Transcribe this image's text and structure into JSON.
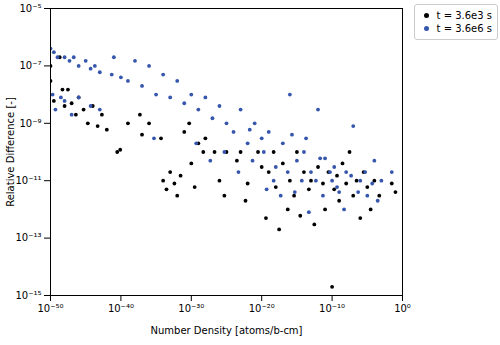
{
  "chart_data": {
    "type": "scatter",
    "xlabel": "Number Density [atoms/b-cm]",
    "ylabel": "Relative Difference [-]",
    "log": true,
    "legend": "upper right",
    "marker": "circle",
    "xlim": [
      1e-50,
      1
    ],
    "ylim": [
      1e-15,
      1e-05
    ],
    "xticks": [
      {
        "value": 1e-50,
        "label": "10⁻⁵⁰"
      },
      {
        "value": 1e-40,
        "label": "10⁻⁴⁰"
      },
      {
        "value": 1e-30,
        "label": "10⁻³⁰"
      },
      {
        "value": 1e-20,
        "label": "10⁻²⁰"
      },
      {
        "value": 1e-10,
        "label": "10⁻¹⁰"
      },
      {
        "value": 1,
        "label": "10⁰"
      }
    ],
    "yticks": [
      {
        "value": 1e-15,
        "label": "10⁻¹⁵"
      },
      {
        "value": 1e-13,
        "label": "10⁻¹³"
      },
      {
        "value": 1e-11,
        "label": "10⁻¹¹"
      },
      {
        "value": 1e-09,
        "label": "10⁻⁹"
      },
      {
        "value": 1e-07,
        "label": "10⁻⁷"
      },
      {
        "value": 1e-05,
        "label": "10⁻⁵"
      }
    ],
    "series": [
      {
        "name": "t = 3.6e3 s",
        "color": "#000000",
        "x": [
          1e-50,
          1e-50,
          3e-50,
          2e-49,
          5e-49,
          1e-48,
          3e-48,
          1e-47,
          4e-47,
          1e-46,
          5e-46,
          2e-45,
          1e-44,
          5e-44,
          2e-43,
          1e-42,
          3e-41,
          8e-41,
          1e-39,
          5e-38,
          1e-37,
          1e-36,
          5e-35,
          1e-34,
          3e-34,
          1e-33,
          4e-33,
          1e-32,
          3e-32,
          1e-31,
          5e-31,
          1e-30,
          3e-30,
          1e-29,
          5e-29,
          1e-28,
          2e-27,
          1e-26,
          5e-26,
          1e-25,
          3e-24,
          1e-23,
          5e-23,
          1e-22,
          3e-21,
          1e-20,
          4e-20,
          1e-19,
          5e-19,
          1e-18,
          3e-18,
          1e-17,
          5e-17,
          1e-16,
          4e-16,
          1e-15,
          3e-15,
          1e-14,
          5e-14,
          1e-13,
          3e-13,
          1e-12,
          5e-12,
          1e-11,
          3e-11,
          1e-10,
          2e-10,
          5e-10,
          1e-09,
          3e-09,
          1e-08,
          3e-08,
          1e-07,
          3e-07,
          1e-06,
          3e-06,
          1e-05,
          3e-05,
          0.0001,
          0.0005,
          0.03,
          0.1
        ],
        "values": [
          3e-08,
          1e-07,
          6e-09,
          2e-07,
          1.5e-08,
          4e-09,
          1.5e-08,
          5e-09,
          2e-09,
          8e-09,
          3e-09,
          1e-09,
          4e-09,
          8e-10,
          2e-09,
          6e-10,
          1e-10,
          1.2e-10,
          1e-09,
          2e-09,
          4e-10,
          1e-09,
          3e-10,
          1e-11,
          5e-12,
          2e-11,
          8e-12,
          3e-12,
          1.5e-11,
          5e-10,
          1e-09,
          4e-11,
          6e-12,
          2e-10,
          1e-10,
          3e-10,
          1e-10,
          1e-11,
          3e-12,
          1e-10,
          5e-11,
          1e-10,
          2e-12,
          8e-12,
          1e-10,
          3e-11,
          5e-13,
          2e-11,
          1e-10,
          6e-12,
          2e-13,
          4e-11,
          1e-12,
          1e-11,
          3e-12,
          1e-10,
          6e-13,
          2e-11,
          5e-12,
          1e-11,
          3e-13,
          3e-11,
          8e-12,
          1e-12,
          2e-11,
          2e-15,
          5e-12,
          1.5e-11,
          2e-12,
          4e-11,
          8e-12,
          1e-10,
          3e-12,
          1e-11,
          5e-13,
          2e-11,
          6e-12,
          1e-12,
          1e-11,
          3e-12,
          8e-12,
          4e-12
        ]
      },
      {
        "name": "t = 3.6e6 s",
        "color": "#3656ad",
        "x": [
          1e-50,
          3e-50,
          1e-49,
          2e-50,
          5e-50,
          3e-49,
          1e-48,
          5e-48,
          2e-47,
          1e-46,
          1e-45,
          5e-45,
          2e-44,
          1e-43,
          1e-48,
          1e-47,
          1e-46,
          5e-45,
          1e-43,
          5e-42,
          1e-41,
          1e-40,
          1e-39,
          1e-38,
          1e-37,
          1e-36,
          1e-35,
          1e-34,
          1e-33,
          1e-32,
          1e-31,
          1e-30,
          1e-29,
          1e-28,
          1e-27,
          1e-26,
          1e-25,
          1e-24,
          1e-23,
          1e-22,
          1e-21,
          1e-20,
          1e-19,
          1e-18,
          1e-17,
          1e-16,
          1e-15,
          1e-14,
          1e-13,
          1e-12,
          1e-11,
          1e-10,
          1e-09,
          1e-08,
          1e-07,
          1e-06,
          1e-05,
          0.0001,
          0.001,
          0.03,
          5e-36,
          5e-30,
          5e-28,
          5e-26,
          5e-24,
          5e-22,
          5e-20,
          5e-19,
          5e-18,
          5e-17,
          5e-16,
          5e-15,
          5e-14,
          5e-13,
          5e-12,
          5e-11,
          5e-10,
          5e-09,
          5e-08,
          5e-07,
          5e-06,
          5e-05,
          0.0003,
          2e-22,
          2e-20,
          2e-16,
          2e-14,
          2e-12,
          2e-10
        ],
        "values": [
          4e-07,
          3e-07,
          2e-07,
          1e-08,
          3e-09,
          8e-09,
          2e-07,
          1.5e-07,
          2e-07,
          1e-07,
          1.5e-07,
          8e-08,
          1e-07,
          6e-08,
          6e-09,
          2e-09,
          8e-09,
          4e-09,
          3e-09,
          5e-08,
          2e-07,
          4e-08,
          3e-08,
          1.5e-07,
          2e-08,
          1e-07,
          1e-08,
          5e-08,
          8e-09,
          3e-08,
          5e-09,
          1e-08,
          3e-09,
          8e-09,
          1.5e-09,
          4e-09,
          1e-09,
          5e-10,
          3e-09,
          2e-10,
          1e-09,
          3e-10,
          5e-10,
          3e-11,
          2e-10,
          1e-08,
          5e-11,
          1e-10,
          2e-11,
          3e-09,
          6e-11,
          1e-11,
          4e-12,
          2e-11,
          8e-10,
          1e-11,
          3e-12,
          5e-11,
          1e-11,
          2e-11,
          3e-10,
          2e-10,
          5e-11,
          1e-10,
          2e-11,
          5e-11,
          5e-12,
          1e-11,
          3e-12,
          2e-11,
          4e-12,
          1e-11,
          8e-13,
          1e-11,
          3e-12,
          2e-11,
          6e-12,
          1e-12,
          1.5e-11,
          4e-12,
          2e-11,
          8e-12,
          2e-12,
          6e-10,
          1e-10,
          4e-10,
          3e-10,
          6e-11,
          3e-11
        ]
      }
    ]
  }
}
